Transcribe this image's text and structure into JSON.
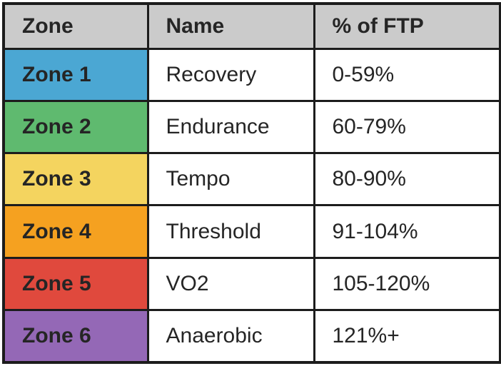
{
  "table": {
    "title": "power-training-zones-table",
    "headers": {
      "zone": "Zone",
      "name": "Name",
      "ftp": "% of FTP"
    },
    "rows": [
      {
        "zone": "Zone 1",
        "name": "Recovery",
        "ftp": "0-59%",
        "color": "#4BA7D3"
      },
      {
        "zone": "Zone 2",
        "name": "Endurance",
        "ftp": "60-79%",
        "color": "#5FBA6F"
      },
      {
        "zone": "Zone 3",
        "name": "Tempo",
        "ftp": "80-90%",
        "color": "#F4D45F"
      },
      {
        "zone": "Zone 4",
        "name": "Threshold",
        "ftp": "91-104%",
        "color": "#F5A120"
      },
      {
        "zone": "Zone 5",
        "name": "VO2",
        "ftp": "105-120%",
        "color": "#E0493D"
      },
      {
        "zone": "Zone 6",
        "name": "Anaerobic",
        "ftp": "121%+",
        "color": "#9468B6"
      }
    ],
    "colors": {
      "header_bg": "#CBCBCB",
      "border": "#1C1C1C",
      "text": "#252525"
    }
  }
}
